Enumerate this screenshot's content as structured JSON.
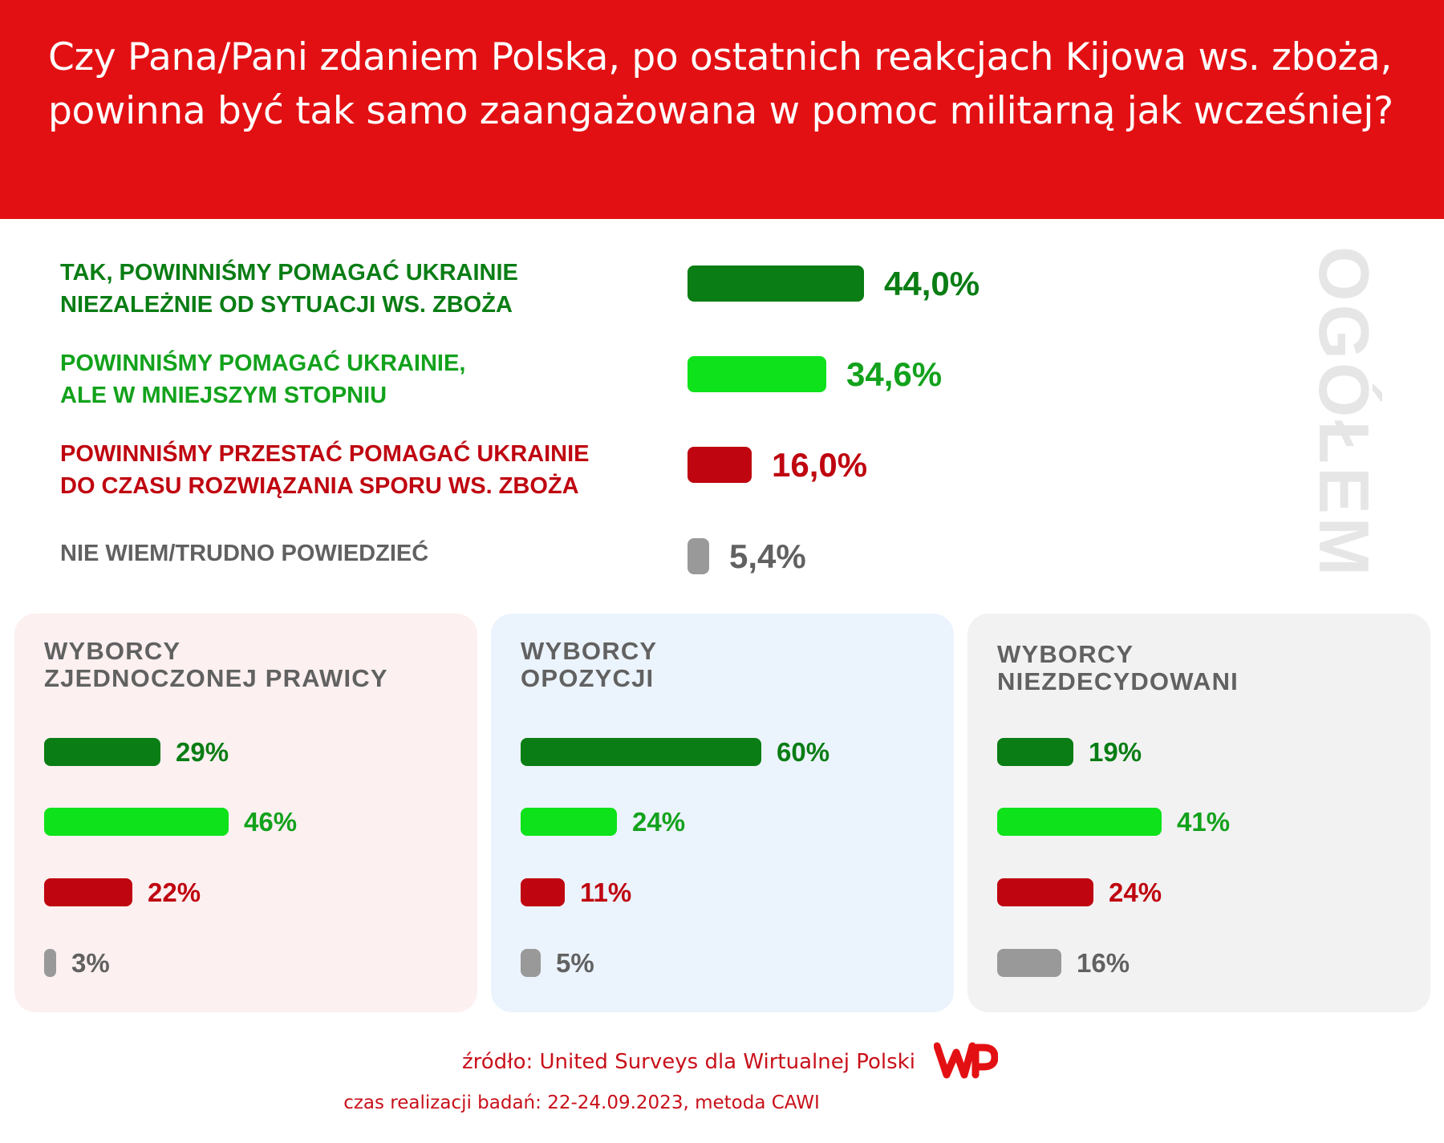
{
  "title": "Czy Pana/Pani zdaniem Polska, po ostatnich reakcjach Kijowa ws. zboża, powinna być tak samo zaangażowana w pomoc militarną jak wcześniej?",
  "vertical_label": "OGÓŁEM",
  "colors": {
    "header_bg": "#e31013",
    "dark_green": "#0a7d14",
    "light_green": "#0ee21a",
    "red": "#bf0510",
    "gray": "#999999",
    "label_gray": "#616161"
  },
  "main": {
    "rows": [
      {
        "label_line1": "TAK, POWINNIŚMY POMAGAĆ UKRAINIE",
        "label_line2": "NIEZALEŻNIE OD SYTUACJI WS. ZBOŻA",
        "value_text": "44,0%"
      },
      {
        "label_line1": "POWINNIŚMY POMAGAĆ UKRAINIE,",
        "label_line2": "ALE W MNIEJSZYM STOPNIU",
        "value_text": "34,6%"
      },
      {
        "label_line1": "POWINNIŚMY PRZESTAĆ POMAGAĆ UKRAINIE",
        "label_line2": "DO CZASU ROZWIĄZANIA SPORU WS. ZBOŻA",
        "value_text": "16,0%"
      },
      {
        "label_line1": "NIE WIEM/TRUDNO POWIEDZIEĆ",
        "label_line2": "",
        "value_text": "5,4%"
      }
    ]
  },
  "panels": [
    {
      "title_line1": "WYBORCY",
      "title_line2": "ZJEDNOCZONEJ PRAWICY",
      "bg": "#fcf0f0",
      "values_text": [
        "29%",
        "46%",
        "22%",
        "3%"
      ]
    },
    {
      "title_line1": "WYBORCY",
      "title_line2": "OPOZYCJI",
      "bg": "#ebf3fd",
      "values_text": [
        "60%",
        "24%",
        "11%",
        "5%"
      ]
    },
    {
      "title_line1": "WYBORCY",
      "title_line2": "NIEZDECYDOWANI",
      "bg": "#f2f2f2",
      "values_text": [
        "19%",
        "41%",
        "24%",
        "16%"
      ]
    }
  ],
  "footer": {
    "source": "źródło: United Surveys dla Wirtualnej Polski",
    "date": "czas realizacji badań: 22-24.09.2023, metoda CAWI",
    "logo": "WP"
  },
  "chart_data": [
    {
      "type": "bar",
      "title": "OGÓŁEM",
      "categories": [
        "TAK, POWINNIŚMY POMAGAĆ UKRAINIE NIEZALEŻNIE OD SYTUACJI WS. ZBOŻA",
        "POWINNIŚMY POMAGAĆ UKRAINIE, ALE W MNIEJSZYM STOPNIU",
        "POWINNIŚMY PRZESTAĆ POMAGAĆ UKRAINIE DO CZASU ROZWIĄZANIA SPORU WS. ZBOŻA",
        "NIE WIEM/TRUDNO POWIEDZIEĆ"
      ],
      "values": [
        44.0,
        34.6,
        16.0,
        5.4
      ],
      "unit": "%"
    },
    {
      "type": "bar",
      "title": "WYBORCY ZJEDNOCZONEJ PRAWICY",
      "categories": [
        "TAK, POWINNIŚMY POMAGAĆ UKRAINIE NIEZALEŻNIE OD SYTUACJI WS. ZBOŻA",
        "POWINNIŚMY POMAGAĆ UKRAINIE, ALE W MNIEJSZYM STOPNIU",
        "POWINNIŚMY PRZESTAĆ POMAGAĆ UKRAINIE DO CZASU ROZWIĄZANIA SPORU WS. ZBOŻA",
        "NIE WIEM/TRUDNO POWIEDZIEĆ"
      ],
      "values": [
        29,
        46,
        22,
        3
      ],
      "unit": "%"
    },
    {
      "type": "bar",
      "title": "WYBORCY OPOZYCJI",
      "categories": [
        "TAK, POWINNIŚMY POMAGAĆ UKRAINIE NIEZALEŻNIE OD SYTUACJI WS. ZBOŻA",
        "POWINNIŚMY POMAGAĆ UKRAINIE, ALE W MNIEJSZYM STOPNIU",
        "POWINNIŚMY PRZESTAĆ POMAGAĆ UKRAINIE DO CZASU ROZWIĄZANIA SPORU WS. ZBOŻA",
        "NIE WIEM/TRUDNO POWIEDZIEĆ"
      ],
      "values": [
        60,
        24,
        11,
        5
      ],
      "unit": "%"
    },
    {
      "type": "bar",
      "title": "WYBORCY NIEZDECYDOWANI",
      "categories": [
        "TAK, POWINNIŚMY POMAGAĆ UKRAINIE NIEZALEŻNIE OD SYTUACJI WS. ZBOŻA",
        "POWINNIŚMY POMAGAĆ UKRAINIE, ALE W MNIEJSZYM STOPNIU",
        "POWINNIŚMY PRZESTAĆ POMAGAĆ UKRAINIE DO CZASU ROZWIĄZANIA SPORU WS. ZBOŻA",
        "NIE WIEM/TRUDNO POWIEDZIEĆ"
      ],
      "values": [
        19,
        41,
        24,
        16
      ],
      "unit": "%"
    }
  ]
}
